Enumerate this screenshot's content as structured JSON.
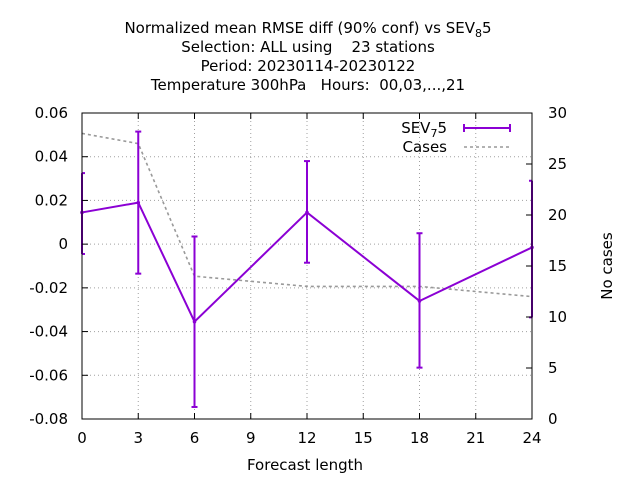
{
  "chart_data": {
    "type": "line",
    "title_lines": [
      "Normalized mean RMSE diff (90% conf) vs SEV",
      "Selection: ALL using    23 stations",
      "Period: 20230114-20230122",
      "Temperature 300hPa   Hours:  00,03,...,21"
    ],
    "title_sub": {
      "base": "SEV",
      "sub": "8",
      "tail": "5"
    },
    "xlabel": "Forecast length",
    "ylabel": "",
    "y2label": "No cases",
    "xlim": [
      0,
      24
    ],
    "ylim": [
      -0.08,
      0.06
    ],
    "y2lim": [
      0,
      30
    ],
    "x_ticks": [
      0,
      3,
      6,
      9,
      12,
      15,
      18,
      21,
      24
    ],
    "y_ticks": [
      -0.08,
      -0.06,
      -0.04,
      -0.02,
      0,
      0.02,
      0.04,
      0.06
    ],
    "y_tick_labels": [
      "-0.08",
      "-0.06",
      "-0.04",
      "-0.02",
      "0",
      "0.02",
      "0.04",
      "0.06"
    ],
    "y2_ticks": [
      0,
      5,
      10,
      15,
      20,
      25,
      30
    ],
    "grid": true,
    "legend_position": "top-right",
    "series": [
      {
        "name": "SEV",
        "legend": {
          "base": "SEV",
          "sub": "7",
          "tail": "5"
        },
        "color": "#8b00d4",
        "axis": "left",
        "style": "errorbars",
        "x": [
          0,
          3,
          6,
          12,
          18,
          24
        ],
        "y": [
          0.0145,
          0.019,
          -0.0355,
          0.0145,
          -0.026,
          -0.0015
        ],
        "err_low": [
          -0.0045,
          -0.0135,
          -0.0745,
          -0.0085,
          -0.0565,
          -0.0335
        ],
        "err_high": [
          0.0325,
          0.0515,
          0.0035,
          0.038,
          0.005,
          0.029
        ]
      },
      {
        "name": "Cases",
        "color": "#999999",
        "axis": "right",
        "style": "dashed",
        "x": [
          0,
          3,
          6,
          9,
          12,
          15,
          18,
          21,
          24
        ],
        "y": [
          28,
          27,
          14,
          13.5,
          13,
          13,
          13,
          12.5,
          12
        ]
      }
    ]
  }
}
